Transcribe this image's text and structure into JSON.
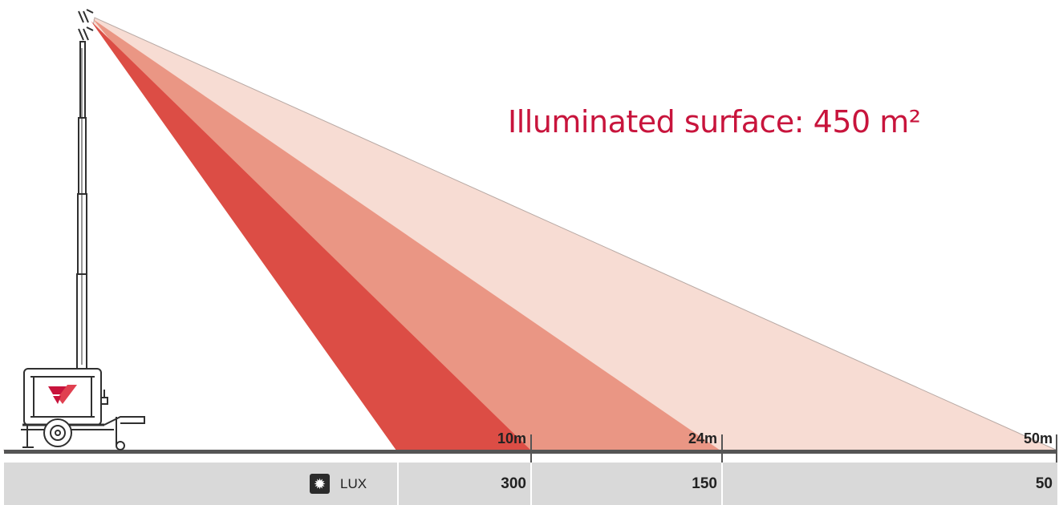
{
  "headline": {
    "text": "Illuminated surface: 450 m²",
    "color": "#c8143c"
  },
  "distances": [
    "10m",
    "24m",
    "50m"
  ],
  "lux": {
    "label": "LUX",
    "icon": "sun-burst-icon",
    "values": [
      "300",
      "150",
      "50"
    ]
  },
  "colors": {
    "beam_300": "#dc4d45",
    "beam_150": "#ea9684",
    "beam_50": "#f7dcd3",
    "ground": "#555555",
    "bar": "#d9d9d9"
  }
}
